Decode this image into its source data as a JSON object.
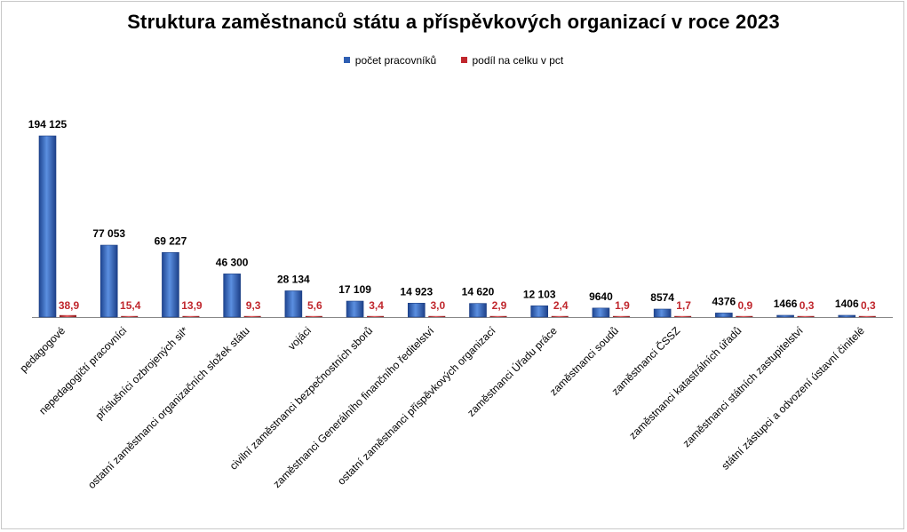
{
  "colors": {
    "series1": "#3a6ec2",
    "series2": "#c0272d",
    "axis": "#888888"
  },
  "chart_data": {
    "type": "bar",
    "title": "Struktura zaměstnanců státu a příspěvkových organizací v roce 2023",
    "legend_position": "top",
    "grid": false,
    "categories": [
      "pedagogové",
      "nepedagogičtí pracovníci",
      "příslušníci ozbrojených sil*",
      "ostatní zaměstnanci organizačních složek státu",
      "vojáci",
      "civilní zaměstnanci bezpečnostních sborů",
      "zaměstnanci Generálního finančního ředitelství",
      "ostatní zaměstnanci příspěvkových organizací",
      "zaměstnanci Úřadu práce",
      "zaměstnanci soudů",
      "zaměstnanci ČSSZ",
      "zaměstnanci katastrálních úřadů",
      "zaměstnanci státních zastupitelství",
      "státní zástupci a odvození ústavní činitelé"
    ],
    "series": [
      {
        "name": "počet pracovníků",
        "values": [
          194125,
          77053,
          69227,
          46300,
          28134,
          17109,
          14923,
          14620,
          12103,
          9640,
          8574,
          4376,
          1466,
          1406
        ],
        "labels": [
          "194 125",
          "77 053",
          "69 227",
          "46 300",
          "28 134",
          "17 109",
          "14 923",
          "14 620",
          "12 103",
          "9640",
          "8574",
          "4376",
          "1466",
          "1406"
        ]
      },
      {
        "name": "podíl na celku v pct",
        "values": [
          38.9,
          15.4,
          13.9,
          9.3,
          5.6,
          3.4,
          3.0,
          2.9,
          2.4,
          1.9,
          1.7,
          0.9,
          0.3,
          0.3
        ],
        "labels": [
          "38,9",
          "15,4",
          "13,9",
          "9,3",
          "5,6",
          "3,4",
          "3,0",
          "2,9",
          "2,4",
          "1,9",
          "1,7",
          "0,9",
          "0,3",
          "0,3"
        ]
      }
    ],
    "ylim": [
      0,
      200000
    ]
  }
}
